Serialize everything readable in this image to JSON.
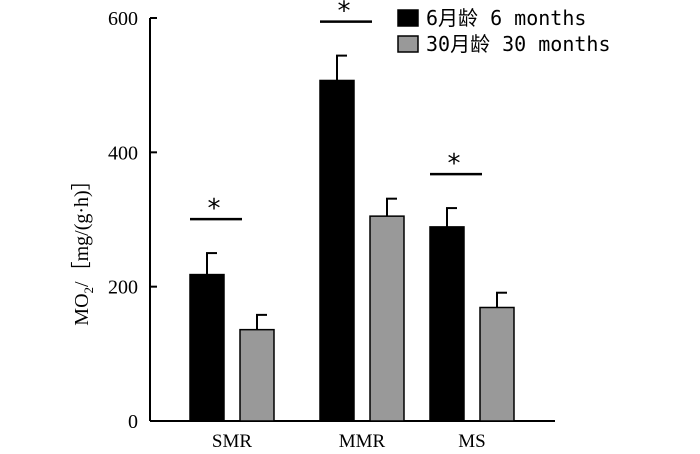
{
  "chart_data": {
    "type": "bar",
    "title": "",
    "xlabel": "",
    "ylabel": "MO2/[mg/(g·h)]",
    "ylabel_parts": {
      "main": "MO",
      "sub": "2",
      "unit": "/［mg/(g·h)］"
    },
    "ylim": [
      0,
      600
    ],
    "yticks": [
      0,
      200,
      400,
      600
    ],
    "categories": [
      "SMR",
      "MMR",
      "MS"
    ],
    "series": [
      {
        "name": "6月龄 6 months",
        "color": "#000000",
        "values": [
          218,
          507,
          289
        ],
        "errors": [
          32,
          37,
          28
        ]
      },
      {
        "name": "30月龄 30 months",
        "color": "#999999",
        "values": [
          136,
          305,
          169
        ],
        "errors": [
          22,
          26,
          22
        ]
      }
    ],
    "significance": [
      {
        "category": "SMR",
        "label": "*"
      },
      {
        "category": "MMR",
        "label": "*"
      },
      {
        "category": "MS",
        "label": "*"
      }
    ],
    "legend_position": "top-right"
  }
}
